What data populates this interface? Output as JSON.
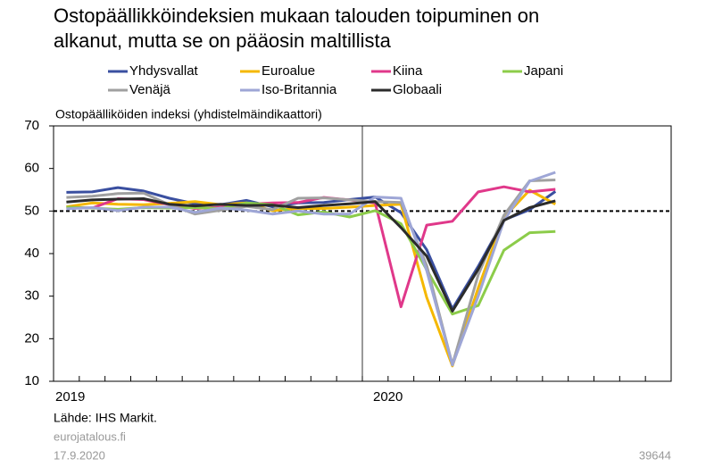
{
  "chart_data": {
    "type": "line",
    "title": [
      "Ostopäällikköindeksien mukaan talouden toipuminen on",
      "alkanut, mutta se on pääosin maltillista"
    ],
    "y_label": "Ostopäälliköiden indeksi (yhdistelmäindikaattori)",
    "categories": [
      "2019",
      null,
      null,
      null,
      null,
      null,
      null,
      null,
      null,
      null,
      null,
      null,
      "2020",
      null,
      null,
      null,
      null,
      null,
      null,
      null,
      null,
      null,
      null,
      null
    ],
    "ylim": [
      10,
      70
    ],
    "yticks": [
      10,
      20,
      30,
      40,
      50,
      60,
      70
    ],
    "reference_line": 50,
    "series": [
      {
        "name": "Yhdysvallat",
        "color": "#3a4fa0",
        "values": [
          54.4,
          54.5,
          55.5,
          54.7,
          53,
          51.7,
          51.5,
          52.5,
          51,
          51.9,
          52,
          52.7,
          53.3,
          49.6,
          40.9,
          27,
          37,
          47.9,
          50.3,
          54.6,
          null,
          null,
          null,
          null
        ]
      },
      {
        "name": "Euroalue",
        "color": "#f5b800",
        "values": [
          51,
          51.9,
          51.6,
          51.5,
          51.8,
          52.2,
          51.5,
          51.9,
          50.1,
          50.6,
          50.6,
          50.9,
          51.3,
          51.6,
          29.7,
          13.6,
          31.9,
          48.5,
          54.9,
          51.6,
          null,
          null,
          null,
          null
        ]
      },
      {
        "name": "Kiina",
        "color": "#e0388a",
        "values": [
          50.9,
          50.7,
          52.9,
          52.7,
          51.5,
          50.6,
          50.9,
          51.6,
          51.9,
          52,
          53.2,
          52.6,
          51.9,
          27.5,
          46.7,
          47.6,
          54.5,
          55.7,
          54.5,
          55.1,
          null,
          null,
          null,
          null
        ]
      },
      {
        "name": "Japani",
        "color": "#8ccc4a",
        "values": [
          50.9,
          50.7,
          50.4,
          50.8,
          50.7,
          50.8,
          50.6,
          51.9,
          51.5,
          49.1,
          49.8,
          48.6,
          50.1,
          47,
          36.2,
          25.8,
          27.8,
          40.8,
          44.9,
          45.2,
          null,
          null,
          null,
          null
        ]
      },
      {
        "name": "Venäjä",
        "color": "#a0a0a0",
        "values": [
          53.2,
          53.5,
          54.1,
          54.2,
          51.5,
          49.3,
          50.2,
          51.1,
          50.3,
          53,
          53.1,
          52.6,
          52.2,
          52,
          37.2,
          13.9,
          35,
          49,
          57.1,
          57.3,
          null,
          null,
          null,
          null
        ]
      },
      {
        "name": "Iso-Britannia",
        "color": "#9ea6d6",
        "values": [
          50.5,
          50.8,
          50.1,
          50.9,
          50.9,
          49.7,
          50.7,
          50.2,
          49.3,
          50,
          49.3,
          49.3,
          53.3,
          53,
          36,
          13.8,
          30,
          47.7,
          57,
          59.1,
          null,
          null,
          null,
          null
        ]
      },
      {
        "name": "Globaali",
        "color": "#2b2b2b",
        "values": [
          52.1,
          52.6,
          52.8,
          52.9,
          51.6,
          51.2,
          51.6,
          51.3,
          51.4,
          50.8,
          51.3,
          51.7,
          52.2,
          46.1,
          39.4,
          26.5,
          36.3,
          47.8,
          50.8,
          52.4,
          null,
          null,
          null,
          null
        ]
      }
    ],
    "source": "Lähde: IHS Markit.",
    "site": "eurojatalous.fi",
    "date": "17.9.2020",
    "code": "39644"
  }
}
